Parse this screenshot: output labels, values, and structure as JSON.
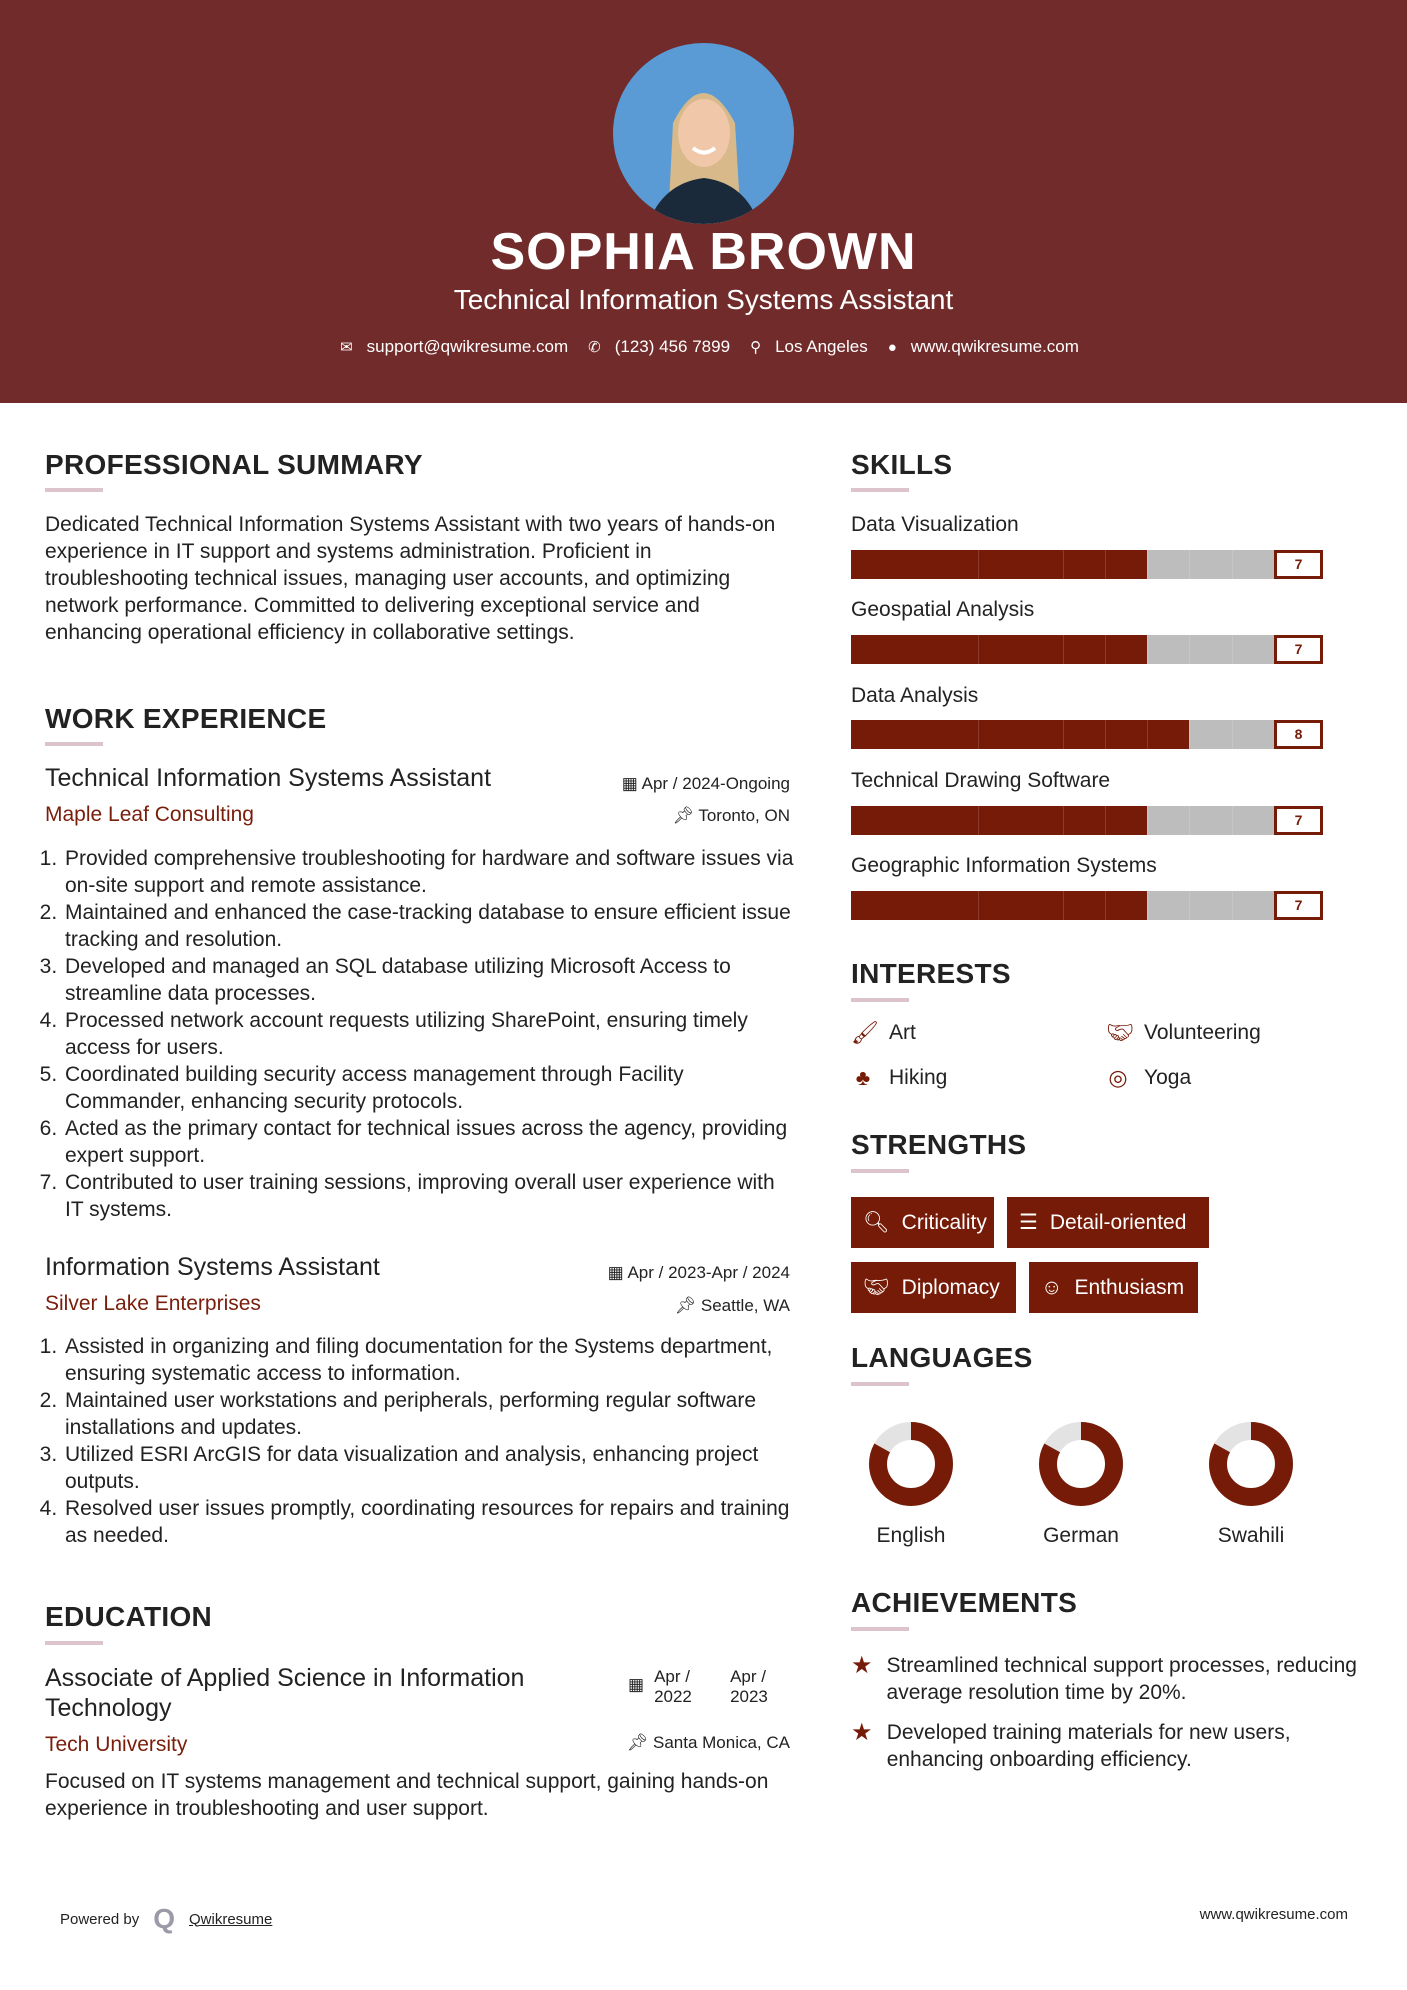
{
  "header": {
    "name": "SOPHIA BROWN",
    "title": "Technical Information Systems Assistant",
    "contacts": {
      "email": "support@qwikresume.com",
      "phone": "(123) 456 7899",
      "location": "Los Angeles",
      "website": "www.qwikresume.com"
    }
  },
  "colors": {
    "header_bg": "#722b2b",
    "accent": "#761b07",
    "bar_empty": "#bdbdbd",
    "underline": "#dcc3cc"
  },
  "summary": {
    "heading": "PROFESSIONAL SUMMARY",
    "text": "Dedicated Technical Information Systems Assistant with two years of hands-on experience in IT support and systems administration. Proficient in troubleshooting technical issues, managing user accounts, and optimizing network performance. Committed to delivering exceptional service and enhancing operational efficiency in collaborative settings."
  },
  "experience": {
    "heading": "WORK EXPERIENCE",
    "jobs": [
      {
        "title": "Technical Information Systems Assistant",
        "company": "Maple Leaf Consulting",
        "dates": "Apr / 2024-Ongoing",
        "location": "Toronto, ON",
        "bullets": [
          "Provided comprehensive troubleshooting for hardware and software issues via on-site support and remote assistance.",
          "Maintained and enhanced the case-tracking database to ensure efficient issue tracking and resolution.",
          "Developed and managed an SQL database utilizing Microsoft Access to streamline data processes.",
          "Processed network account requests utilizing SharePoint, ensuring timely access for users.",
          "Coordinated building security access management through Facility Commander, enhancing security protocols.",
          "Acted as the primary contact for technical issues across the agency, providing expert support.",
          "Contributed to user training sessions, improving overall user experience with IT systems."
        ]
      },
      {
        "title": "Information Systems Assistant",
        "company": "Silver Lake Enterprises",
        "dates": "Apr / 2023-Apr / 2024",
        "location": "Seattle, WA",
        "bullets": [
          "Assisted in organizing and filing documentation for the Systems department, ensuring systematic access to information.",
          "Maintained user workstations and peripherals, performing regular software installations and updates.",
          "Utilized ESRI ArcGIS for data visualization and analysis, enhancing project outputs.",
          "Resolved user issues promptly, coordinating resources for repairs and training as needed."
        ]
      }
    ]
  },
  "education": {
    "heading": "EDUCATION",
    "degree": "Associate of Applied Science in Information Technology",
    "school": "Tech University",
    "start": "Apr / 2022",
    "end": "Apr / 2023",
    "location": "Santa Monica, CA",
    "description": "Focused on IT systems management and technical support, gaining hands-on experience in troubleshooting and user support."
  },
  "skills": {
    "heading": "SKILLS",
    "max": 10,
    "items": [
      {
        "name": "Data Visualization",
        "level": 7
      },
      {
        "name": "Geospatial Analysis",
        "level": 7
      },
      {
        "name": "Data Analysis",
        "level": 8
      },
      {
        "name": "Technical Drawing Software",
        "level": 7
      },
      {
        "name": "Geographic Information Systems",
        "level": 7
      }
    ]
  },
  "interests": {
    "heading": "INTERESTS",
    "items": [
      {
        "label": "Art",
        "icon": "paintbrush-icon"
      },
      {
        "label": "Volunteering",
        "icon": "handshake-icon"
      },
      {
        "label": "Hiking",
        "icon": "tree-icon"
      },
      {
        "label": "Yoga",
        "icon": "life-ring-icon"
      }
    ]
  },
  "strengths": {
    "heading": "STRENGTHS",
    "items": [
      {
        "label": "Criticality",
        "icon": "search-icon"
      },
      {
        "label": "Detail-oriented",
        "icon": "list-icon"
      },
      {
        "label": "Diplomacy",
        "icon": "handshake-icon"
      },
      {
        "label": "Enthusiasm",
        "icon": "smile-icon"
      }
    ]
  },
  "languages": {
    "heading": "LANGUAGES",
    "items": [
      {
        "name": "English",
        "proficiency": 0.83
      },
      {
        "name": "German",
        "proficiency": 0.83
      },
      {
        "name": "Swahili",
        "proficiency": 0.83
      }
    ]
  },
  "achievements": {
    "heading": "ACHIEVEMENTS",
    "items": [
      "Streamlined technical support processes, reducing average resolution time by 20%.",
      "Developed training materials for new users, enhancing onboarding efficiency."
    ]
  },
  "footer": {
    "powered_by": "Powered by",
    "brand": "Qwikresume",
    "website": "www.qwikresume.com"
  }
}
